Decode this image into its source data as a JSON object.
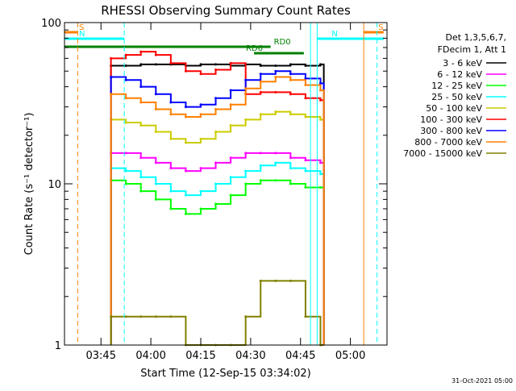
{
  "colors": {
    "background": "#ffffff",
    "axes": "#000000",
    "band_3_6": "#000000",
    "band_6_12": "#ff00ff",
    "band_12_25": "#00ff00",
    "band_25_50": "#00ffff",
    "band_50_100": "#cccc00",
    "band_100_300": "#ff0000",
    "band_300_800": "#0000ff",
    "band_800_7000": "#ff8000",
    "band_7000_15000": "#808000",
    "saa_marker": "#ff8000",
    "night_marker": "#00ffff",
    "decimation_marker": "#008000"
  },
  "chart_data": {
    "type": "line",
    "title": "RHESSI Observing Summary Count Rates",
    "xlabel": "Start Time (12-Sep-15 03:34:02)",
    "ylabel": "Count Rate (s⁻¹ detector⁻¹)",
    "x_units": "minutes after 03:34:02",
    "xlim": [
      "03:34:02",
      "05:11:00"
    ],
    "ylim": [
      1,
      100
    ],
    "yscale": "log",
    "x_ticks": [
      "03:45",
      "04:00",
      "04:15",
      "04:30",
      "04:45",
      "05:00"
    ],
    "y_ticks": [
      "1",
      "10",
      "100"
    ],
    "legend_header": [
      "Det 1,3,5,6,7,",
      "FDecim 1, Att 1"
    ],
    "legend_position": "right",
    "footer": "31-Oct-2021 05:00",
    "data_window": [
      "03:48",
      "04:52"
    ],
    "series": [
      {
        "name": "3 - 6 keV",
        "color": "#000000",
        "values": [
          54,
          54,
          55,
          55,
          55,
          54,
          55,
          55,
          54,
          55,
          54,
          54,
          55,
          54,
          55
        ]
      },
      {
        "name": "6 - 12 keV",
        "color": "#ff00ff",
        "values": [
          15.5,
          15.5,
          14.5,
          13.5,
          12.5,
          12,
          12.5,
          13.5,
          14.5,
          15.5,
          15.5,
          15.5,
          14.5,
          14,
          13.5
        ]
      },
      {
        "name": "12 - 25 keV",
        "color": "#00ff00",
        "values": [
          10.5,
          10,
          9,
          8,
          7,
          6.5,
          7,
          7.5,
          8.5,
          10,
          10.5,
          10.5,
          10,
          9.5,
          9.5
        ]
      },
      {
        "name": "25 - 50 keV",
        "color": "#00ffff",
        "values": [
          12.5,
          12,
          11,
          10,
          9,
          8.5,
          9,
          10,
          11,
          12,
          13,
          13.5,
          12.5,
          12,
          11.5
        ]
      },
      {
        "name": "50 - 100 keV",
        "color": "#cccc00",
        "values": [
          25,
          24,
          23,
          21,
          19,
          18,
          19,
          21,
          23,
          25,
          27,
          28,
          27,
          26,
          25
        ]
      },
      {
        "name": "100 - 300 keV",
        "color": "#ff0000",
        "values": [
          60,
          63,
          66,
          63,
          56,
          50,
          48,
          51,
          56,
          36,
          37,
          37,
          36,
          34,
          33
        ]
      },
      {
        "name": "300 - 800 keV",
        "color": "#0000ff",
        "values": [
          46,
          44,
          40,
          36,
          32,
          30,
          31,
          34,
          38,
          44,
          48,
          50,
          48,
          45,
          42
        ]
      },
      {
        "name": "800 - 7000 keV",
        "color": "#ff8000",
        "values": [
          36,
          34,
          32,
          29,
          27,
          26,
          27,
          29,
          31,
          39,
          43,
          46,
          44,
          41,
          38
        ]
      },
      {
        "name": "7000 - 15000 keV",
        "color": "#808000",
        "values": [
          1.5,
          1.5,
          1.5,
          1.5,
          1.5,
          1,
          1,
          1,
          1,
          1.5,
          2.5,
          2.5,
          2.5,
          1.5,
          1
        ]
      }
    ],
    "sample_times": [
      "03:48",
      "03:52.5",
      "03:57",
      "04:01.5",
      "04:06",
      "04:10.5",
      "04:15",
      "04:19.5",
      "04:24",
      "04:28.5",
      "04:33",
      "04:37.5",
      "04:42",
      "04:46.5",
      "04:51"
    ],
    "flags": [
      {
        "label": "S",
        "color": "#ff8000",
        "start": "03:34:02",
        "end": "03:38"
      },
      {
        "label": "N",
        "color": "#00ffff",
        "start": "03:34:02",
        "end": "03:52"
      },
      {
        "label": "RD0",
        "color": "#008000",
        "start": "03:34:02",
        "end": "04:36"
      },
      {
        "label": "RD6",
        "color": "#008000",
        "start": "04:31",
        "end": "04:46"
      },
      {
        "label": "N",
        "color": "#00ffff",
        "start": "04:50",
        "end": "05:10"
      },
      {
        "label": "S",
        "color": "#ff8000",
        "start": "05:04",
        "end": "05:10"
      }
    ],
    "event_lines": [
      {
        "time": "03:38",
        "color": "#ff8000",
        "style": "dashed"
      },
      {
        "time": "03:52",
        "color": "#00ffff",
        "style": "dashed"
      },
      {
        "time": "04:48",
        "color": "#00ffff",
        "style": "solid"
      },
      {
        "time": "04:50",
        "color": "#00ffff",
        "style": "solid"
      },
      {
        "time": "05:04",
        "color": "#ff8000",
        "style": "solid"
      },
      {
        "time": "05:08",
        "color": "#00ffff",
        "style": "dashed"
      }
    ]
  }
}
